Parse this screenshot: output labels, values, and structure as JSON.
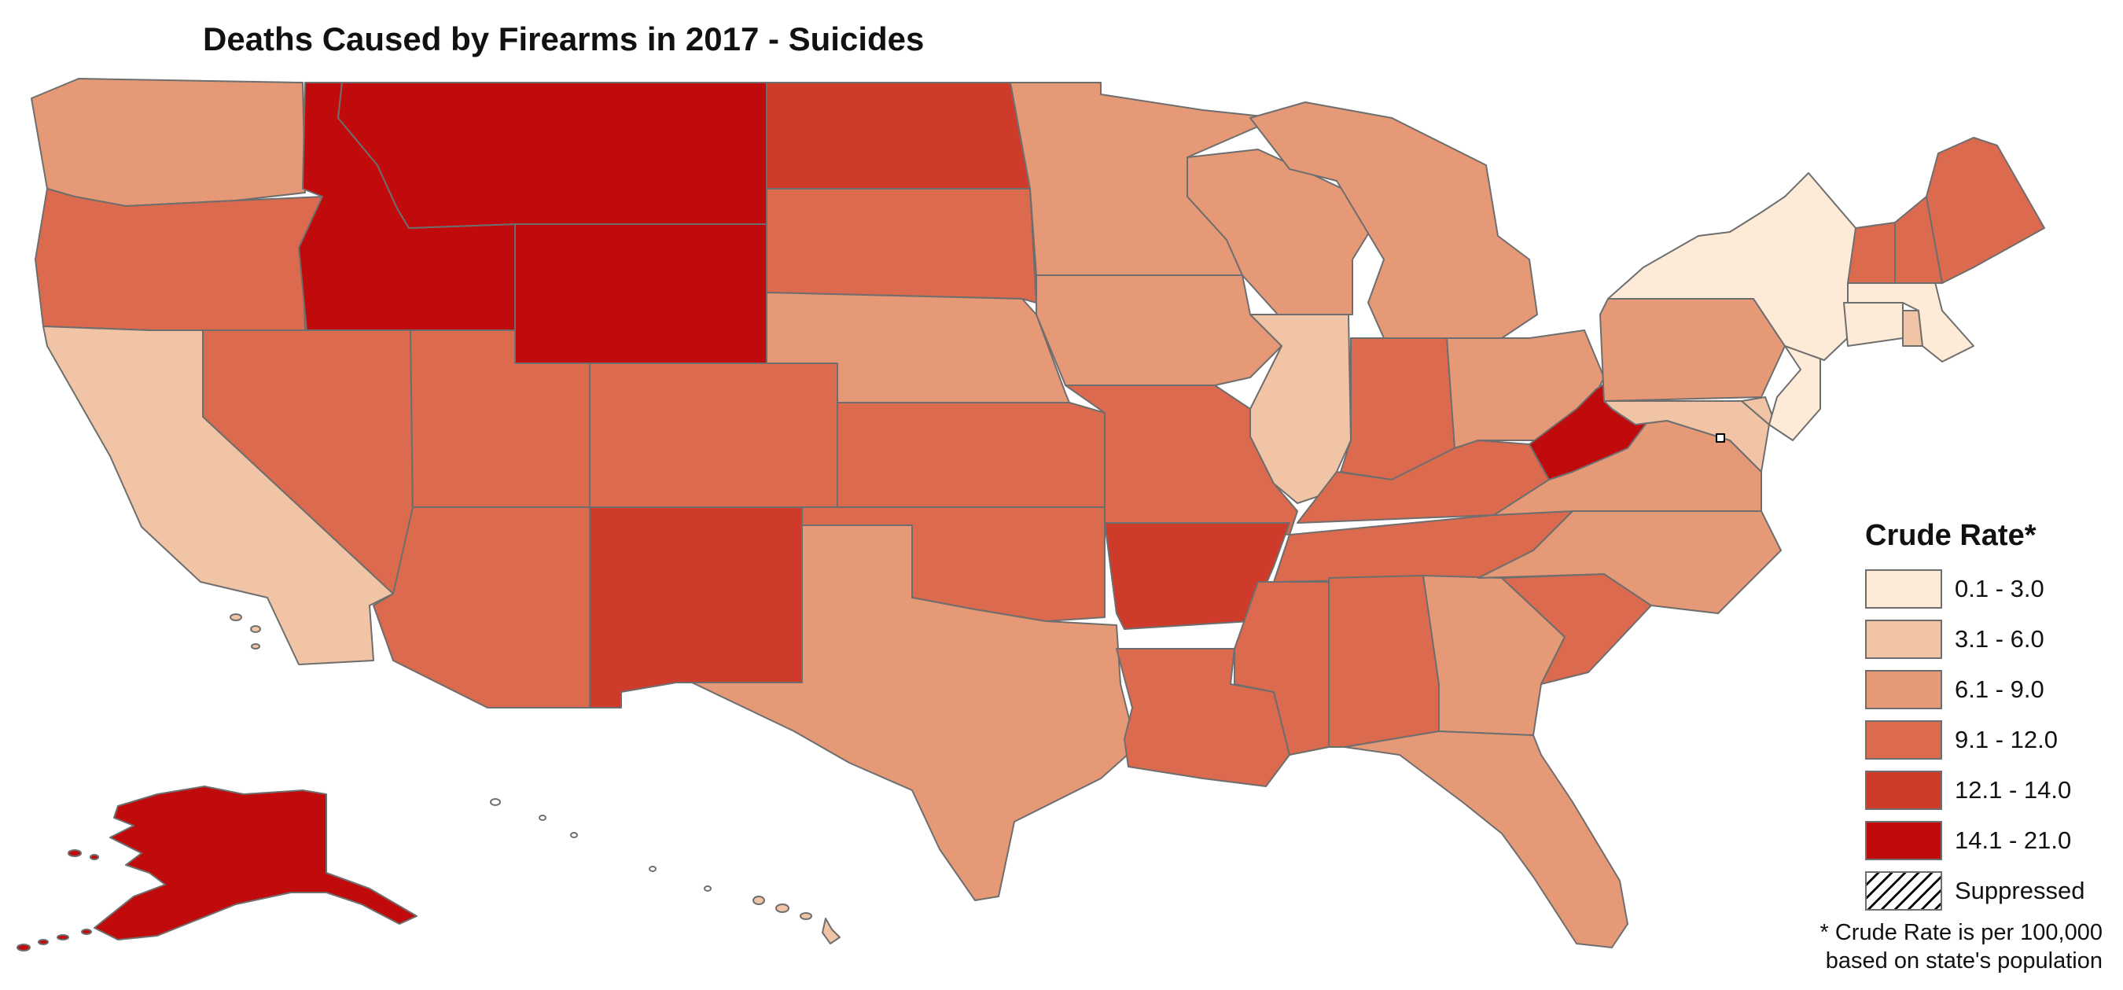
{
  "title": "Deaths Caused by Firearms in 2017 - Suicides",
  "legend": {
    "title": "Crude Rate*",
    "classes": [
      {
        "label": "0.1 - 3.0",
        "color": "#fdebd7"
      },
      {
        "label": "3.1 - 6.0",
        "color": "#f0c4a4"
      },
      {
        "label": "6.1 - 9.0",
        "color": "#e69976"
      },
      {
        "label": "9.1 - 12.0",
        "color": "#dc6a4e"
      },
      {
        "label": "12.1 - 14.0",
        "color": "#ce3b2b"
      },
      {
        "label": "14.1 - 21.0",
        "color": "#c10a0c"
      }
    ],
    "suppressed_label": "Suppressed"
  },
  "footnote": {
    "line1": "* Crude Rate is per 100,000",
    "line2": "based on state's population"
  },
  "states": [
    {
      "name": "Washington",
      "class": 2
    },
    {
      "name": "Oregon",
      "class": 3
    },
    {
      "name": "California",
      "class": 1
    },
    {
      "name": "Idaho",
      "class": 5
    },
    {
      "name": "Montana",
      "class": 5
    },
    {
      "name": "Wyoming",
      "class": 5
    },
    {
      "name": "Nevada",
      "class": 3
    },
    {
      "name": "Utah",
      "class": 3
    },
    {
      "name": "Arizona",
      "class": 3
    },
    {
      "name": "Colorado",
      "class": 3
    },
    {
      "name": "New Mexico",
      "class": 4
    },
    {
      "name": "North Dakota",
      "class": 4
    },
    {
      "name": "South Dakota",
      "class": 3
    },
    {
      "name": "Nebraska",
      "class": 2
    },
    {
      "name": "Kansas",
      "class": 3
    },
    {
      "name": "Oklahoma",
      "class": 3
    },
    {
      "name": "Texas",
      "class": 2
    },
    {
      "name": "Minnesota",
      "class": 2
    },
    {
      "name": "Iowa",
      "class": 2
    },
    {
      "name": "Missouri",
      "class": 3
    },
    {
      "name": "Arkansas",
      "class": 4
    },
    {
      "name": "Louisiana",
      "class": 3
    },
    {
      "name": "Wisconsin",
      "class": 2
    },
    {
      "name": "Illinois",
      "class": 1
    },
    {
      "name": "Michigan",
      "class": 2
    },
    {
      "name": "Indiana",
      "class": 3
    },
    {
      "name": "Ohio",
      "class": 2
    },
    {
      "name": "Kentucky",
      "class": 3
    },
    {
      "name": "Tennessee",
      "class": 3
    },
    {
      "name": "Mississippi",
      "class": 3
    },
    {
      "name": "Alabama",
      "class": 3
    },
    {
      "name": "Georgia",
      "class": 2
    },
    {
      "name": "Florida",
      "class": 2
    },
    {
      "name": "South Carolina",
      "class": 3
    },
    {
      "name": "North Carolina",
      "class": 2
    },
    {
      "name": "Virginia",
      "class": 2
    },
    {
      "name": "West Virginia",
      "class": 5
    },
    {
      "name": "Maryland",
      "class": 1
    },
    {
      "name": "District of Columbia",
      "class": "suppressed"
    },
    {
      "name": "Delaware",
      "class": 1
    },
    {
      "name": "Pennsylvania",
      "class": 2
    },
    {
      "name": "New Jersey",
      "class": 0
    },
    {
      "name": "New York",
      "class": 0
    },
    {
      "name": "Connecticut",
      "class": 0
    },
    {
      "name": "Rhode Island",
      "class": 1
    },
    {
      "name": "Massachusetts",
      "class": 0
    },
    {
      "name": "Vermont",
      "class": 3
    },
    {
      "name": "New Hampshire",
      "class": 3
    },
    {
      "name": "Maine",
      "class": 3
    },
    {
      "name": "Alaska",
      "class": 5
    },
    {
      "name": "Hawaii",
      "class": 1
    }
  ]
}
